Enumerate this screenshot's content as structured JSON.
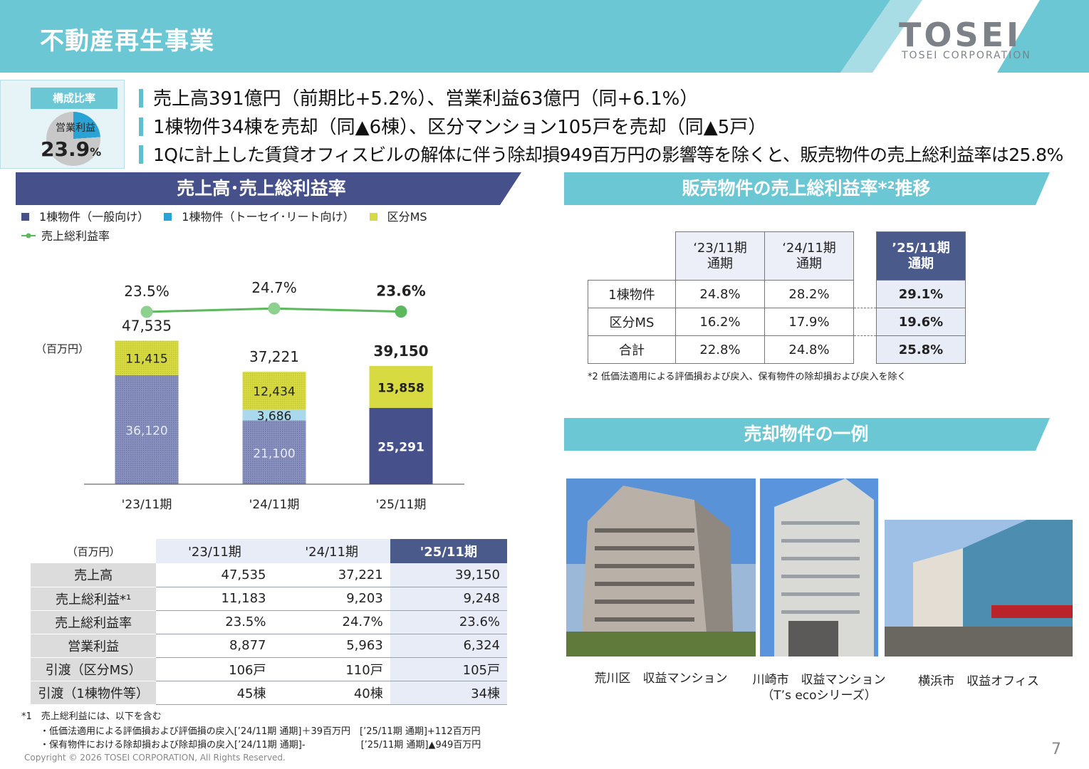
{
  "header": {
    "title": "不動産再生事業",
    "logo_word": "TOSEI",
    "logo_sub": "TOSEI CORPORATION"
  },
  "ratio_box": {
    "label": "構成比率",
    "sub": "営業利益",
    "value": "23.9",
    "unit": "%",
    "share": 23.9
  },
  "bullets": [
    "売上高391億円（前期比+5.2%）、営業利益63億円（同+6.1%）",
    "1棟物件34棟を売却（同▲6棟）、区分マンション105戸を売却（同▲5戸）",
    "1Qに計上した賃貸オフィスビルの解体に伴う除却損949百万円の影響等を除くと、販売物件の売上総利益率は25.8%"
  ],
  "sections": {
    "sales_chart": "売上高･売上総利益率",
    "margin_trend": "販売物件の売上総利益率*²推移",
    "examples": "売却物件の一例"
  },
  "legend": {
    "general": "1棟物件（一般向け）",
    "reit": "1棟物件（トーセイ･リート向け）",
    "ms": "区分MS",
    "margin": "売上総利益率"
  },
  "colors": {
    "header": "#6cc7d4",
    "navy": "#46508a",
    "teal": "#6cc7d4",
    "general": "#8a93bf",
    "reit": "#aad8ec",
    "ms": "#d8da42",
    "line": "#5cb85c"
  },
  "chart_data": {
    "type": "bar",
    "unit_label": "（百万円）",
    "categories": [
      "'23/11期",
      "'24/11期",
      "'25/11期"
    ],
    "series": [
      {
        "name": "1棟物件（一般向け）",
        "values": [
          36120,
          21100,
          25291
        ],
        "labels": [
          "36,120",
          "21,100",
          "25,291"
        ]
      },
      {
        "name": "1棟物件（トーセイ･リート向け）",
        "values": [
          0,
          3686,
          0
        ],
        "labels": [
          "",
          "3,686",
          ""
        ]
      },
      {
        "name": "区分MS",
        "values": [
          11415,
          12434,
          13858
        ],
        "labels": [
          "11,415",
          "12,434",
          "13,858"
        ]
      }
    ],
    "totals": [
      47535,
      37221,
      39150
    ],
    "total_labels": [
      "47,535",
      "37,221",
      "39,150"
    ],
    "margin": {
      "name": "売上総利益率",
      "values": [
        23.5,
        24.7,
        23.6
      ],
      "labels": [
        "23.5%",
        "24.7%",
        "23.6%"
      ]
    },
    "ylim": [
      0,
      60000
    ]
  },
  "perf_table": {
    "unit": "（百万円）",
    "headers": [
      "'23/11期",
      "'24/11期",
      "'25/11期"
    ],
    "rows": [
      {
        "label": "売上高",
        "values": [
          "47,535",
          "37,221",
          "39,150"
        ]
      },
      {
        "label": "売上総利益*¹",
        "values": [
          "11,183",
          "9,203",
          "9,248"
        ]
      },
      {
        "label": "売上総利益率",
        "values": [
          "23.5%",
          "24.7%",
          "23.6%"
        ]
      },
      {
        "label": "営業利益",
        "values": [
          "8,877",
          "5,963",
          "6,324"
        ]
      },
      {
        "label": "引渡（区分MS）",
        "values": [
          "106戸",
          "110戸",
          "105戸"
        ]
      },
      {
        "label": "引渡（1棟物件等）",
        "values": [
          "45棟",
          "40棟",
          "34棟"
        ]
      }
    ]
  },
  "notes": {
    "n1_title": "*1　売上総利益には、以下を含む",
    "n1_line1": "・低価法適用による評価損および評価損の戻入[’24/11期 通期]＋39百万円　[’25/11期 通期]+112百万円",
    "n1_line2": "・保有物件における除却損および除却損の戻入[’24/11期 通期]-　　　　　　[’25/11期 通期]▲949百万円",
    "n2": "*2 低価法適用による評価損および戻入、保有物件の除却損および戻入を除く"
  },
  "margin_table": {
    "headers": [
      [
        "‘23/11期",
        "通期"
      ],
      [
        "‘24/11期",
        "通期"
      ],
      [
        "’25/11期",
        "通期"
      ]
    ],
    "rows": [
      {
        "label": "1棟物件",
        "values": [
          "24.8%",
          "28.2%",
          "29.1%"
        ]
      },
      {
        "label": "区分MS",
        "values": [
          "16.2%",
          "17.9%",
          "19.6%"
        ]
      },
      {
        "label": "合計",
        "values": [
          "22.8%",
          "24.8%",
          "25.8%"
        ]
      }
    ]
  },
  "photos": [
    {
      "caption": "荒川区　収益マンション",
      "caption2": ""
    },
    {
      "caption": "川崎市　収益マンション",
      "caption2": "（T’s ecoシリーズ）"
    },
    {
      "caption": "横浜市　収益オフィス",
      "caption2": ""
    }
  ],
  "footer": {
    "copyright": "Copyright © 2026 TOSEI CORPORATION, All Rights Reserved.",
    "page": "7"
  }
}
